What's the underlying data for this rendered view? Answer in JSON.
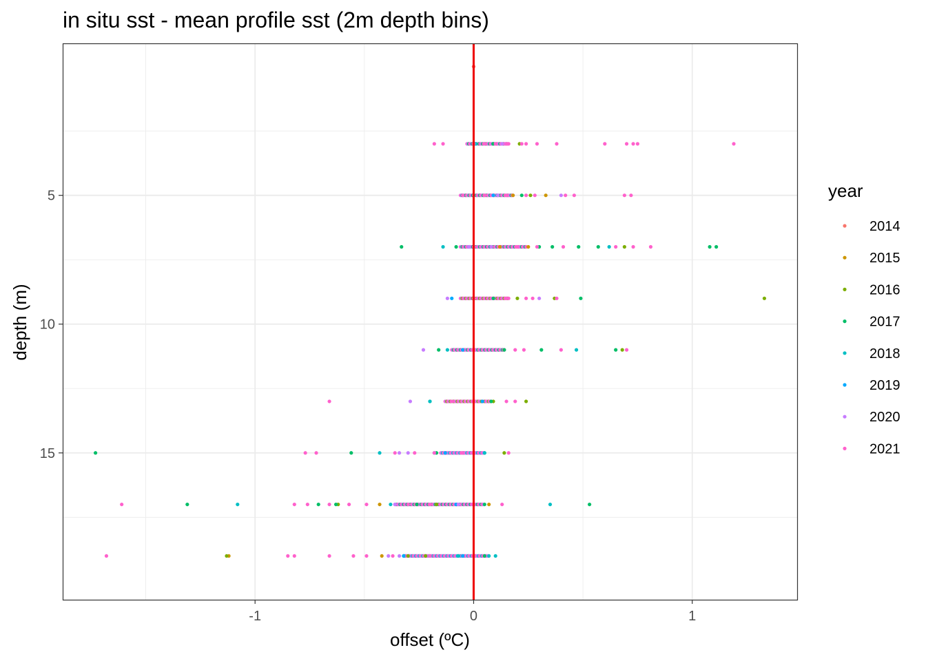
{
  "chart_data": {
    "type": "scatter",
    "title": "in situ sst - mean profile sst (2m depth bins)",
    "xlabel": "offset (ºC)",
    "ylabel": "depth (m)",
    "xlim": [
      -1.88,
      1.48
    ],
    "ylim": [
      -0.9,
      20.7
    ],
    "y_reversed": true,
    "x_ticks": [
      -1,
      0,
      1
    ],
    "x_tick_labels": [
      "-1",
      "0",
      "1"
    ],
    "y_ticks": [
      5,
      10,
      15
    ],
    "y_tick_labels": [
      "5",
      "10",
      "15"
    ],
    "grid": true,
    "reference_line": {
      "x": 0,
      "color": "#ee0000"
    },
    "legend": {
      "title": "year",
      "placement": "right"
    },
    "series": [
      {
        "name": "2014",
        "color": "#F8766D",
        "points": [
          [
            0.0,
            0.0
          ]
        ]
      },
      {
        "name": "2015",
        "color": "#CD9600",
        "points": [
          [
            0.33,
            5.0
          ],
          [
            0.18,
            5.0
          ],
          [
            0.12,
            7.0
          ],
          [
            0.25,
            7.0
          ],
          [
            -0.43,
            17.0
          ],
          [
            0.07,
            17.0
          ],
          [
            -1.12,
            19.0
          ],
          [
            -0.42,
            19.0
          ]
        ]
      },
      {
        "name": "2016",
        "color": "#7CAE00",
        "points": [
          [
            0.21,
            3.0
          ],
          [
            0.26,
            5.0
          ],
          [
            0.69,
            7.0
          ],
          [
            1.33,
            9.0
          ],
          [
            0.37,
            9.0
          ],
          [
            0.2,
            9.0
          ],
          [
            0.68,
            11.0
          ],
          [
            0.09,
            13.0
          ],
          [
            0.24,
            13.0
          ],
          [
            0.14,
            15.0
          ],
          [
            -0.62,
            17.0
          ],
          [
            -0.17,
            17.0
          ],
          [
            -1.13,
            19.0
          ],
          [
            -0.3,
            19.0
          ],
          [
            -0.22,
            19.0
          ]
        ]
      },
      {
        "name": "2017",
        "color": "#00BE67",
        "points": [
          [
            0.05,
            3.0
          ],
          [
            0.09,
            3.0
          ],
          [
            0.22,
            5.0
          ],
          [
            -0.33,
            7.0
          ],
          [
            -0.08,
            7.0
          ],
          [
            0.3,
            7.0
          ],
          [
            0.36,
            7.0
          ],
          [
            0.48,
            7.0
          ],
          [
            0.57,
            7.0
          ],
          [
            1.08,
            7.0
          ],
          [
            1.11,
            7.0
          ],
          [
            0.49,
            9.0
          ],
          [
            0.09,
            9.0
          ],
          [
            -0.16,
            11.0
          ],
          [
            0.31,
            11.0
          ],
          [
            0.65,
            11.0
          ],
          [
            0.14,
            11.0
          ],
          [
            -0.2,
            13.0
          ],
          [
            0.08,
            13.0
          ],
          [
            -1.73,
            15.0
          ],
          [
            -0.56,
            15.0
          ],
          [
            -0.17,
            15.0
          ],
          [
            -1.31,
            17.0
          ],
          [
            -0.71,
            17.0
          ],
          [
            -0.63,
            17.0
          ],
          [
            0.53,
            17.0
          ],
          [
            -0.26,
            17.0
          ],
          [
            -0.32,
            19.0
          ],
          [
            0.05,
            19.0
          ]
        ]
      },
      {
        "name": "2018",
        "color": "#00BFC4",
        "points": [
          [
            0.01,
            3.0
          ],
          [
            -0.14,
            7.0
          ],
          [
            0.62,
            7.0
          ],
          [
            0.47,
            11.0
          ],
          [
            -0.12,
            11.0
          ],
          [
            -0.2,
            13.0
          ],
          [
            -0.43,
            15.0
          ],
          [
            -0.18,
            15.0
          ],
          [
            0.05,
            15.0
          ],
          [
            -1.08,
            17.0
          ],
          [
            0.35,
            17.0
          ],
          [
            -0.38,
            17.0
          ],
          [
            0.1,
            19.0
          ],
          [
            -0.07,
            19.0
          ]
        ]
      },
      {
        "name": "2019",
        "color": "#00A9FF",
        "points": [
          [
            0.09,
            5.0
          ],
          [
            -0.1,
            9.0
          ],
          [
            -0.05,
            11.0
          ],
          [
            0.04,
            13.0
          ],
          [
            -0.13,
            15.0
          ],
          [
            -0.08,
            17.0
          ],
          [
            -0.32,
            19.0
          ],
          [
            -0.05,
            19.0
          ]
        ]
      },
      {
        "name": "2020",
        "color": "#C77CFF",
        "points": [
          [
            0.13,
            3.0
          ],
          [
            0.11,
            5.0
          ],
          [
            0.4,
            5.0
          ],
          [
            -0.02,
            7.0
          ],
          [
            0.08,
            7.0
          ],
          [
            -0.12,
            9.0
          ],
          [
            0.3,
            9.0
          ],
          [
            -0.23,
            11.0
          ],
          [
            -0.29,
            13.0
          ],
          [
            -0.3,
            15.0
          ],
          [
            -0.34,
            15.0
          ],
          [
            -0.07,
            17.0
          ],
          [
            -0.36,
            17.0
          ],
          [
            -0.39,
            19.0
          ],
          [
            -0.34,
            19.0
          ]
        ]
      },
      {
        "name": "2021",
        "color": "#FF61CC",
        "points": [
          [
            -0.18,
            3.0
          ],
          [
            -0.14,
            3.0
          ],
          [
            0.0,
            3.0
          ],
          [
            0.05,
            3.0
          ],
          [
            0.1,
            3.0
          ],
          [
            0.15,
            3.0
          ],
          [
            0.22,
            3.0
          ],
          [
            0.24,
            3.0
          ],
          [
            0.29,
            3.0
          ],
          [
            0.38,
            3.0
          ],
          [
            0.6,
            3.0
          ],
          [
            0.7,
            3.0
          ],
          [
            0.73,
            3.0
          ],
          [
            0.75,
            3.0
          ],
          [
            1.19,
            3.0
          ],
          [
            -0.05,
            5.0
          ],
          [
            0.05,
            5.0
          ],
          [
            0.15,
            5.0
          ],
          [
            0.24,
            5.0
          ],
          [
            0.28,
            5.0
          ],
          [
            0.42,
            5.0
          ],
          [
            0.46,
            5.0
          ],
          [
            0.69,
            5.0
          ],
          [
            0.72,
            5.0
          ],
          [
            0.0,
            7.0
          ],
          [
            0.2,
            7.0
          ],
          [
            0.29,
            7.0
          ],
          [
            0.41,
            7.0
          ],
          [
            0.65,
            7.0
          ],
          [
            0.73,
            7.0
          ],
          [
            0.81,
            7.0
          ],
          [
            0.0,
            9.0
          ],
          [
            0.15,
            9.0
          ],
          [
            0.24,
            9.0
          ],
          [
            0.27,
            9.0
          ],
          [
            0.38,
            9.0
          ],
          [
            0.0,
            11.0
          ],
          [
            0.23,
            11.0
          ],
          [
            0.4,
            11.0
          ],
          [
            0.7,
            11.0
          ],
          [
            0.19,
            11.0
          ],
          [
            -0.66,
            13.0
          ],
          [
            -0.1,
            13.0
          ],
          [
            0.0,
            13.0
          ],
          [
            0.15,
            13.0
          ],
          [
            0.19,
            13.0
          ],
          [
            -0.77,
            15.0
          ],
          [
            -0.72,
            15.0
          ],
          [
            -0.36,
            15.0
          ],
          [
            -0.27,
            15.0
          ],
          [
            -0.18,
            15.0
          ],
          [
            -0.05,
            15.0
          ],
          [
            0.0,
            15.0
          ],
          [
            0.16,
            15.0
          ],
          [
            -1.61,
            17.0
          ],
          [
            -0.82,
            17.0
          ],
          [
            -0.76,
            17.0
          ],
          [
            -0.66,
            17.0
          ],
          [
            -0.57,
            17.0
          ],
          [
            -0.49,
            17.0
          ],
          [
            -0.3,
            17.0
          ],
          [
            -0.2,
            17.0
          ],
          [
            0.0,
            17.0
          ],
          [
            0.13,
            17.0
          ],
          [
            -1.68,
            19.0
          ],
          [
            -0.85,
            19.0
          ],
          [
            -0.82,
            19.0
          ],
          [
            -0.66,
            19.0
          ],
          [
            -0.55,
            19.0
          ],
          [
            -0.49,
            19.0
          ],
          [
            -0.37,
            19.0
          ],
          [
            -0.2,
            19.0
          ],
          [
            0.0,
            19.0
          ]
        ]
      }
    ],
    "dense_bands": [
      {
        "y": 0.0,
        "range": [
          0.0,
          0.0
        ],
        "colors": [
          "#FF61CC",
          "#F8766D"
        ]
      },
      {
        "y": 3.0,
        "range": [
          -0.03,
          0.16
        ],
        "colors": [
          "#FF61CC",
          "#C77CFF",
          "#00BE67",
          "#FF61CC"
        ]
      },
      {
        "y": 5.0,
        "range": [
          -0.06,
          0.18
        ],
        "colors": [
          "#FF61CC",
          "#C77CFF",
          "#00BE67",
          "#FF61CC"
        ]
      },
      {
        "y": 7.0,
        "range": [
          -0.06,
          0.24
        ],
        "colors": [
          "#FF61CC",
          "#C77CFF",
          "#00BE67",
          "#FF61CC"
        ]
      },
      {
        "y": 9.0,
        "range": [
          -0.06,
          0.16
        ],
        "colors": [
          "#FF61CC",
          "#C77CFF",
          "#7CAE00",
          "#FF61CC"
        ]
      },
      {
        "y": 11.0,
        "range": [
          -0.1,
          0.14
        ],
        "colors": [
          "#FF61CC",
          "#C77CFF",
          "#00BE67",
          "#FF61CC"
        ]
      },
      {
        "y": 13.0,
        "range": [
          -0.13,
          0.08
        ],
        "colors": [
          "#FF61CC",
          "#C77CFF",
          "#7CAE00",
          "#FF61CC"
        ]
      },
      {
        "y": 15.0,
        "range": [
          -0.15,
          0.05
        ],
        "colors": [
          "#FF61CC",
          "#C77CFF",
          "#00BFC4",
          "#FF61CC"
        ]
      },
      {
        "y": 17.0,
        "range": [
          -0.36,
          0.05
        ],
        "colors": [
          "#FF61CC",
          "#C77CFF",
          "#00BE67",
          "#FF61CC"
        ]
      },
      {
        "y": 19.0,
        "range": [
          -0.32,
          0.07
        ],
        "colors": [
          "#FF61CC",
          "#C77CFF",
          "#00BFC4",
          "#FF61CC"
        ]
      }
    ]
  }
}
